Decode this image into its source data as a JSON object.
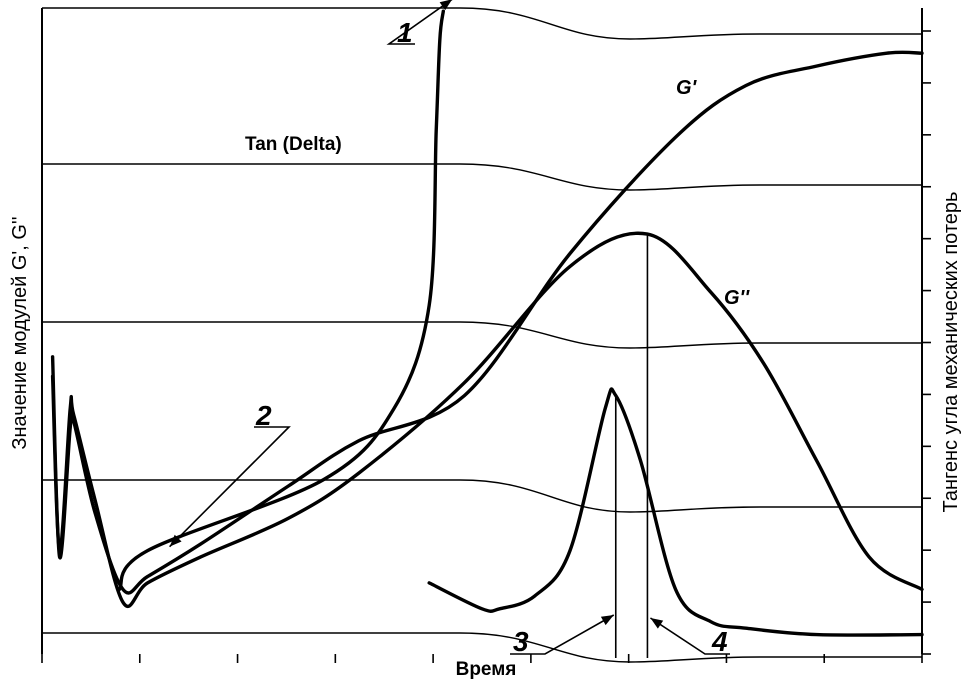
{
  "chart_data": {
    "type": "line",
    "title": "",
    "xlabel": "Время",
    "ylabel_left": "Значение модулей G', G''",
    "ylabel_right": "Тангенс угла механических потерь",
    "grid": false,
    "ticks_x": 9,
    "ticks_right": 12,
    "series": [
      {
        "name": "Tan (Delta)",
        "role": "tan-delta",
        "points": [
          [
            22,
            10
          ],
          [
            30,
            16
          ],
          [
            80,
            27
          ],
          [
            100,
            38
          ],
          [
            110,
            54
          ],
          [
            112,
            81
          ],
          [
            113,
            95
          ],
          [
            114,
            99.5
          ]
        ]
      },
      {
        "name": "G'",
        "role": "storage-modulus",
        "points": [
          [
            3,
            46
          ],
          [
            5,
            15
          ],
          [
            8,
            35
          ],
          [
            9,
            36
          ],
          [
            15,
            22
          ],
          [
            23,
            10
          ],
          [
            30,
            12
          ],
          [
            45,
            17
          ],
          [
            70,
            26
          ],
          [
            90,
            33
          ],
          [
            120,
            40
          ],
          [
            150,
            62
          ],
          [
            180,
            80
          ],
          [
            200,
            88
          ],
          [
            220,
            91
          ],
          [
            240,
            93
          ],
          [
            250,
            93
          ]
        ]
      },
      {
        "name": "G''",
        "role": "loss-modulus",
        "points": [
          [
            3,
            43
          ],
          [
            5,
            16
          ],
          [
            8,
            38
          ],
          [
            9,
            37
          ],
          [
            15,
            24
          ],
          [
            23,
            8
          ],
          [
            30,
            11
          ],
          [
            45,
            15
          ],
          [
            70,
            21
          ],
          [
            90,
            28
          ],
          [
            120,
            42
          ],
          [
            150,
            60
          ],
          [
            172,
            65
          ],
          [
            190,
            56
          ],
          [
            205,
            45
          ],
          [
            220,
            30
          ],
          [
            235,
            15
          ],
          [
            250,
            10
          ]
        ]
      },
      {
        "name": "",
        "role": "loss-peak-2",
        "points": [
          [
            110,
            11
          ],
          [
            125,
            7
          ],
          [
            130,
            7
          ],
          [
            140,
            9
          ],
          [
            150,
            16
          ],
          [
            160,
            38
          ],
          [
            163,
            40
          ],
          [
            170,
            30
          ],
          [
            180,
            10
          ],
          [
            190,
            5
          ],
          [
            200,
            4
          ],
          [
            220,
            3
          ],
          [
            250,
            3
          ]
        ]
      }
    ],
    "markers": [
      {
        "label": "1",
        "target": "Tan (Delta)"
      },
      {
        "label": "2",
        "target": "Tan (Delta)"
      },
      {
        "label": "3",
        "target": "loss-peak-2"
      },
      {
        "label": "4",
        "target": "G''"
      }
    ]
  }
}
